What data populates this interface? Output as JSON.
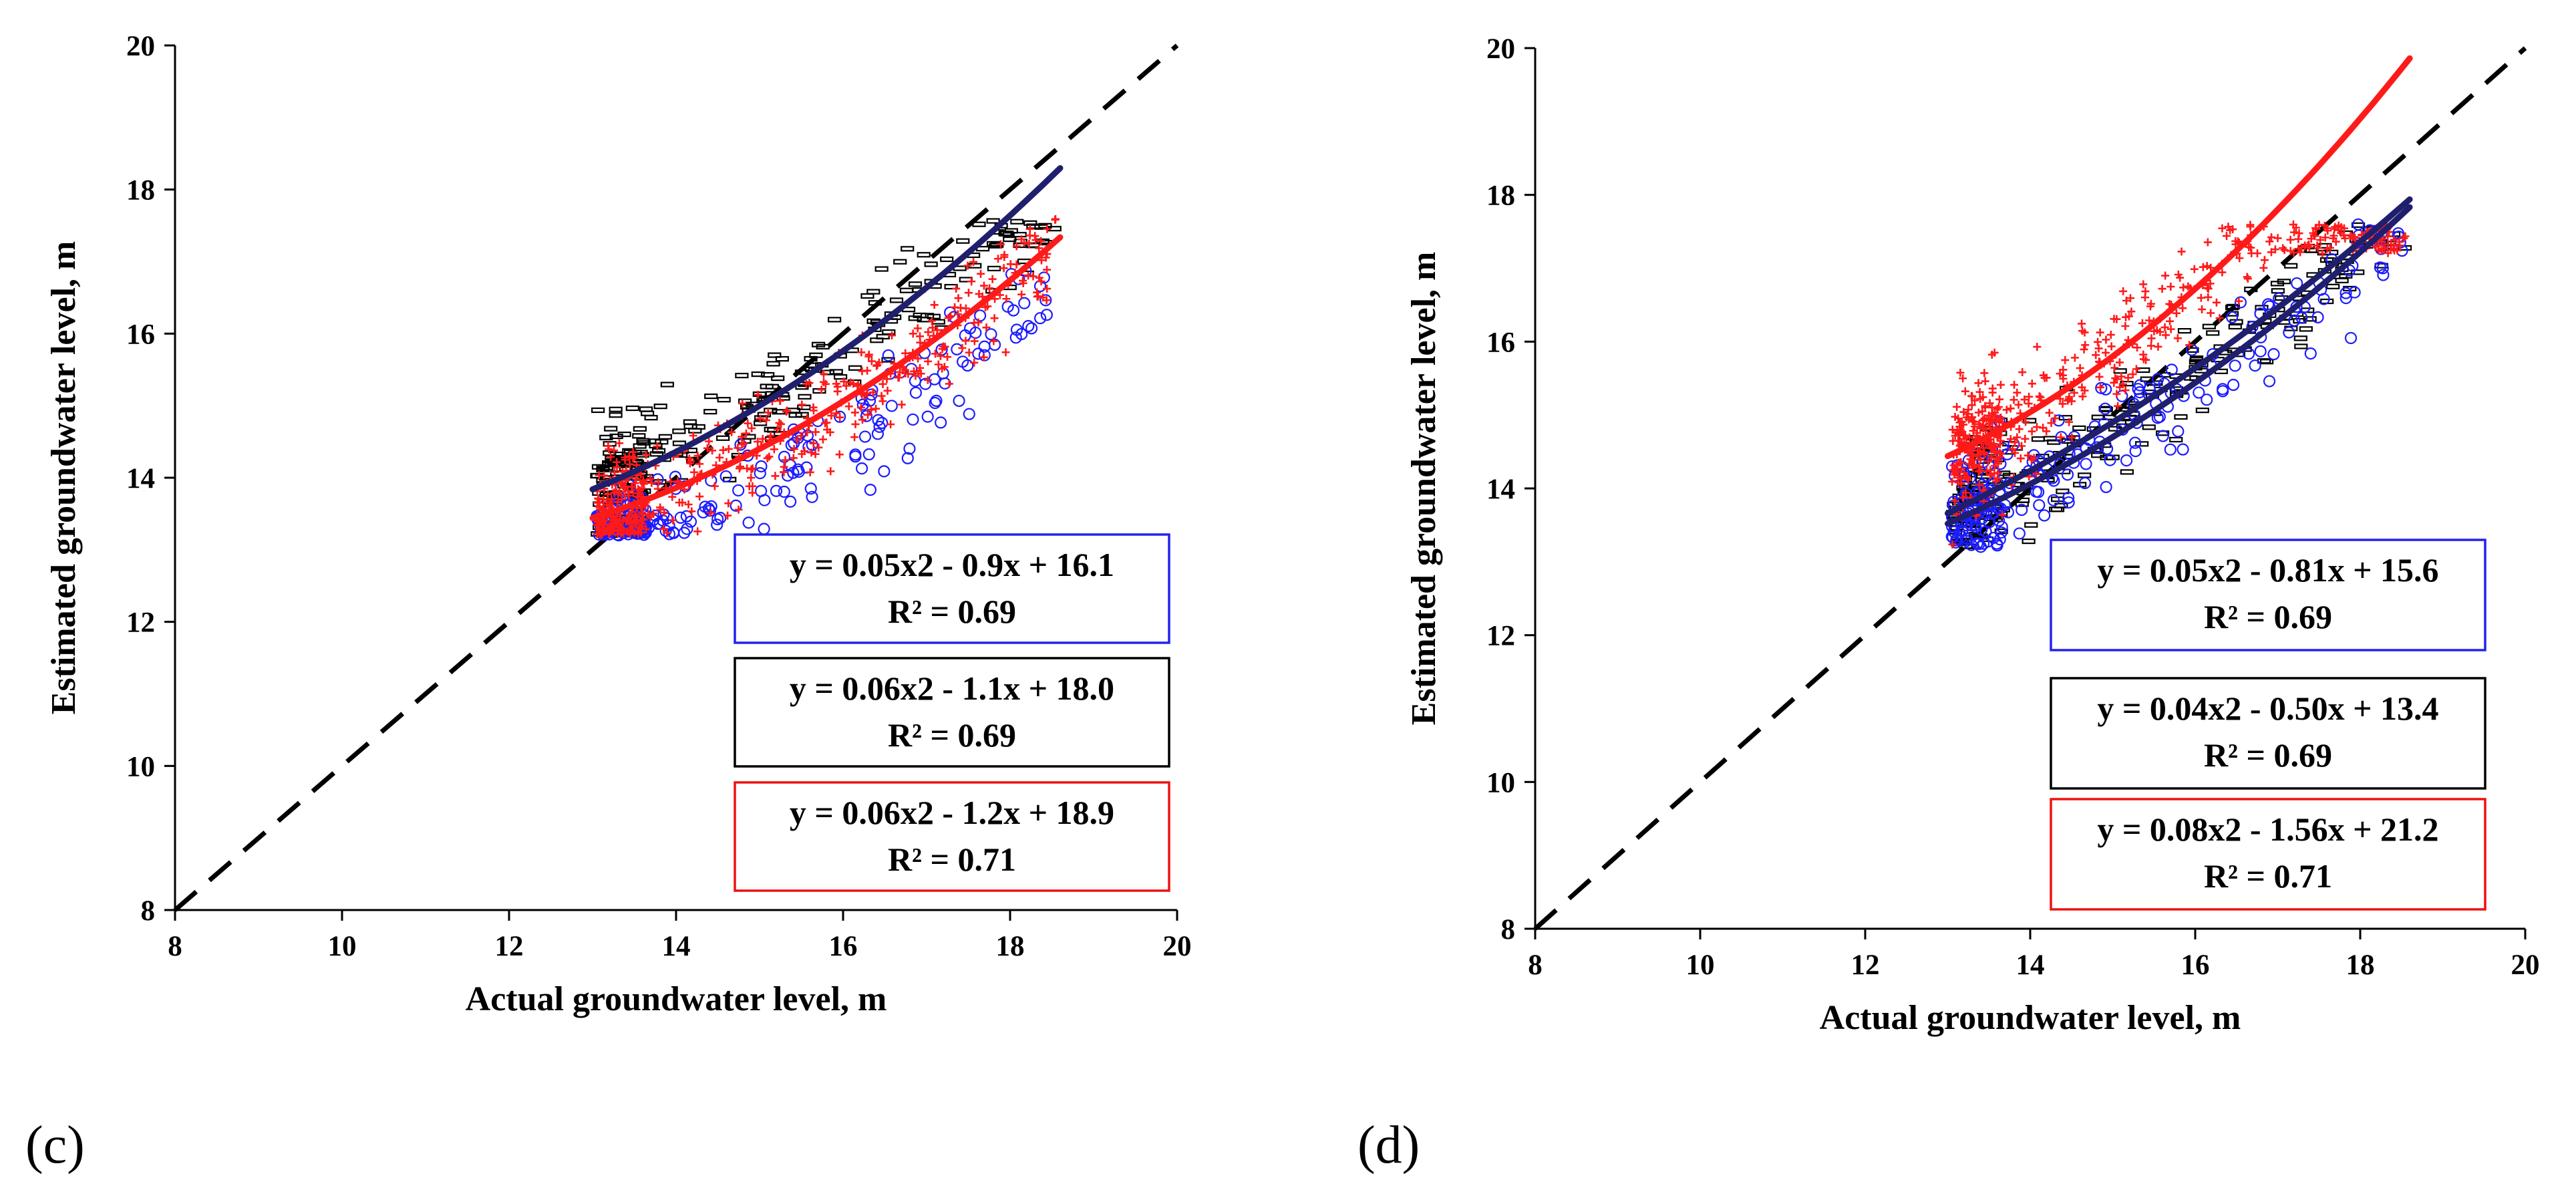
{
  "chart_data": [
    {
      "type": "scatter",
      "panel_label": "(c)",
      "xlabel": "Actual groundwater level, m",
      "ylabel": "Estimated groundwater level, m",
      "xlim": [
        8,
        20
      ],
      "ylim": [
        8,
        20
      ],
      "xticks": [
        "8",
        "10",
        "12",
        "14",
        "16",
        "18",
        "20"
      ],
      "yticks": [
        "8",
        "10",
        "12",
        "14",
        "16",
        "18",
        "20"
      ],
      "reference_line": "1:1 dashed",
      "series": [
        {
          "name": "blue",
          "marker": "circle",
          "color": "#1c1cff",
          "a": 0.05,
          "b": -0.9,
          "c": 16.1,
          "equation": "y = 0.05x2 - 0.9x + 16.1",
          "r2": "R² = 0.69"
        },
        {
          "name": "black",
          "marker": "dash",
          "color": "#000000",
          "a": 0.06,
          "b": -1.1,
          "c": 18.0,
          "equation": "y = 0.06x2 - 1.1x + 18.0",
          "r2": "R² = 0.69"
        },
        {
          "name": "red",
          "marker": "plus",
          "color": "#ff1a1a",
          "a": 0.06,
          "b": -1.2,
          "c": 18.9,
          "equation": "y = 0.06x2 - 1.2x + 18.9",
          "r2": "R² = 0.71"
        }
      ],
      "fit_lines": [
        {
          "color": "#1f1f6e",
          "a": 0.06,
          "b": -1.1,
          "c": 18.0,
          "x0": 13.0,
          "x1": 18.6
        },
        {
          "color": "#ff1a1a",
          "a": 0.06,
          "b": -1.2,
          "c": 18.9,
          "x0": 13.0,
          "x1": 18.6
        }
      ]
    },
    {
      "type": "scatter",
      "panel_label": "(d)",
      "xlabel": "Actual groundwater level, m",
      "ylabel": "Estimated groundwater level, m",
      "xlim": [
        8,
        20
      ],
      "ylim": [
        8,
        20
      ],
      "xticks": [
        "8",
        "10",
        "12",
        "14",
        "16",
        "18",
        "20"
      ],
      "yticks": [
        "8",
        "10",
        "12",
        "14",
        "16",
        "18",
        "20"
      ],
      "reference_line": "1:1 dashed",
      "series": [
        {
          "name": "blue",
          "marker": "circle",
          "color": "#1c1cff",
          "a": 0.05,
          "b": -0.81,
          "c": 15.6,
          "equation": "y = 0.05x2 - 0.81x + 15.6",
          "r2": "R² = 0.69"
        },
        {
          "name": "black",
          "marker": "dash",
          "color": "#000000",
          "a": 0.04,
          "b": -0.5,
          "c": 13.4,
          "equation": "y = 0.04x2 - 0.50x + 13.4",
          "r2": "R² = 0.69"
        },
        {
          "name": "red",
          "marker": "plus",
          "color": "#ff1a1a",
          "a": 0.08,
          "b": -1.56,
          "c": 21.2,
          "equation": "y = 0.08x2 - 1.56x + 21.2",
          "r2": "R² = 0.71"
        }
      ],
      "fit_lines": [
        {
          "color": "#1f1f6e",
          "a": 0.05,
          "b": -0.81,
          "c": 15.6,
          "x0": 13.0,
          "x1": 18.6
        },
        {
          "color": "#1f1f6e",
          "a": 0.04,
          "b": -0.5,
          "c": 13.4,
          "x0": 13.0,
          "x1": 18.6
        },
        {
          "color": "#ff1a1a",
          "a": 0.08,
          "b": -1.56,
          "c": 21.2,
          "x0": 13.0,
          "x1": 18.6
        }
      ]
    }
  ]
}
